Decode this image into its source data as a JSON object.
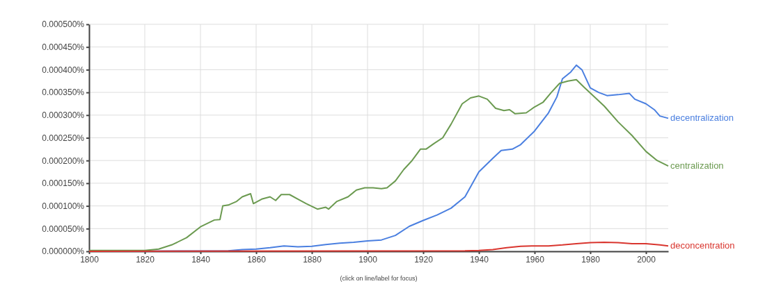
{
  "chart_data": {
    "type": "line",
    "xlim": [
      1800,
      2008
    ],
    "xticks": [
      1800,
      1820,
      1840,
      1860,
      1880,
      1900,
      1920,
      1940,
      1960,
      1980,
      2000
    ],
    "ylim": [
      0,
      0.0005
    ],
    "yticks": [
      {
        "value": 0,
        "label": "0.000000%"
      },
      {
        "value": 5e-05,
        "label": "0.000050%"
      },
      {
        "value": 0.0001,
        "label": "0.000100%"
      },
      {
        "value": 0.00015,
        "label": "0.000150%"
      },
      {
        "value": 0.0002,
        "label": "0.000200%"
      },
      {
        "value": 0.00025,
        "label": "0.000250%"
      },
      {
        "value": 0.0003,
        "label": "0.000300%"
      },
      {
        "value": 0.00035,
        "label": "0.000350%"
      },
      {
        "value": 0.0004,
        "label": "0.000400%"
      },
      {
        "value": 0.00045,
        "label": "0.000450%"
      },
      {
        "value": 0.0005,
        "label": "0.000500%"
      }
    ],
    "grid": true,
    "marker": "none",
    "line_style": "solid",
    "annotations": [
      "(click on line/label for focus)"
    ],
    "series": [
      {
        "name": "decentralization",
        "color": "#4a7fe0",
        "x": [
          1800,
          1850,
          1855,
          1860,
          1865,
          1870,
          1875,
          1880,
          1885,
          1890,
          1895,
          1900,
          1905,
          1910,
          1915,
          1920,
          1925,
          1930,
          1935,
          1940,
          1945,
          1948,
          1952,
          1955,
          1960,
          1965,
          1968,
          1970,
          1973,
          1975,
          1977,
          1980,
          1983,
          1986,
          1990,
          1994,
          1996,
          2000,
          2003,
          2005,
          2008
        ],
        "values": [
          0,
          1e-06,
          4e-06,
          5e-06,
          8e-06,
          1.2e-05,
          1e-05,
          1.1e-05,
          1.5e-05,
          1.8e-05,
          2e-05,
          2.3e-05,
          2.5e-05,
          3.5e-05,
          5.5e-05,
          6.8e-05,
          8e-05,
          9.5e-05,
          0.00012,
          0.000175,
          0.000205,
          0.000222,
          0.000225,
          0.000235,
          0.000265,
          0.000305,
          0.00034,
          0.00038,
          0.000395,
          0.00041,
          0.0004,
          0.00036,
          0.00035,
          0.000343,
          0.000345,
          0.000348,
          0.000335,
          0.000325,
          0.000312,
          0.000298,
          0.000293
        ]
      },
      {
        "name": "centralization",
        "color": "#6b9a50",
        "x": [
          1800,
          1820,
          1825,
          1830,
          1835,
          1840,
          1845,
          1847,
          1848,
          1850,
          1853,
          1855,
          1858,
          1859,
          1862,
          1865,
          1867,
          1869,
          1872,
          1875,
          1878,
          1882,
          1885,
          1886,
          1889,
          1893,
          1896,
          1899,
          1902,
          1905,
          1907,
          1910,
          1913,
          1916,
          1919,
          1921,
          1924,
          1927,
          1930,
          1934,
          1937,
          1940,
          1943,
          1946,
          1949,
          1951,
          1953,
          1957,
          1960,
          1963,
          1966,
          1969,
          1972,
          1975,
          1978,
          1981,
          1985,
          1990,
          1995,
          2000,
          2004,
          2008
        ],
        "values": [
          2e-06,
          2e-06,
          5e-06,
          1.5e-05,
          3e-05,
          5.4e-05,
          6.9e-05,
          7e-05,
          0.0001,
          0.000102,
          0.00011,
          0.00012,
          0.000127,
          0.000105,
          0.000115,
          0.00012,
          0.000112,
          0.000125,
          0.000125,
          0.000115,
          0.000105,
          9.3e-05,
          9.7e-05,
          9.3e-05,
          0.00011,
          0.00012,
          0.000135,
          0.00014,
          0.00014,
          0.000138,
          0.00014,
          0.000155,
          0.00018,
          0.0002,
          0.000225,
          0.000225,
          0.000238,
          0.00025,
          0.00028,
          0.000325,
          0.000338,
          0.000342,
          0.000335,
          0.000315,
          0.00031,
          0.000312,
          0.000303,
          0.000305,
          0.000318,
          0.000328,
          0.00035,
          0.00037,
          0.000375,
          0.000378,
          0.00036,
          0.000343,
          0.00032,
          0.000285,
          0.000255,
          0.00022,
          0.0002,
          0.000188
        ]
      },
      {
        "name": "deconcentration",
        "color": "#d9352e",
        "x": [
          1800,
          1935,
          1940,
          1945,
          1950,
          1955,
          1960,
          1965,
          1970,
          1975,
          1980,
          1985,
          1990,
          1995,
          2000,
          2005,
          2008
        ],
        "values": [
          0,
          1e-06,
          2e-06,
          4e-06,
          8e-06,
          1.1e-05,
          1.2e-05,
          1.2e-05,
          1.4e-05,
          1.7e-05,
          1.9e-05,
          2e-05,
          1.9e-05,
          1.7e-05,
          1.7e-05,
          1.4e-05,
          1.2e-05
        ]
      }
    ]
  }
}
